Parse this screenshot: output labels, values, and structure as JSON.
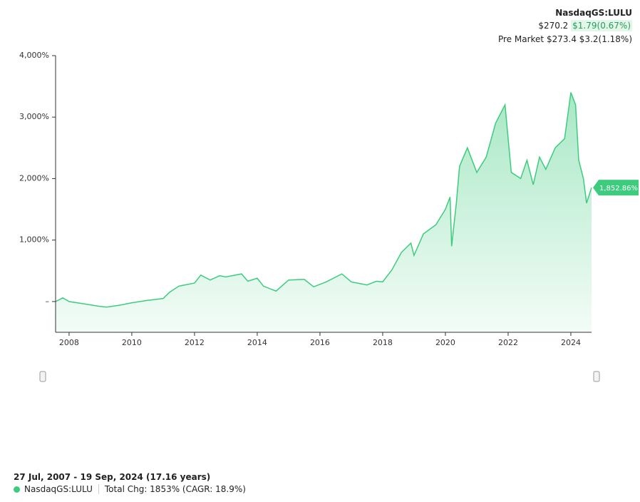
{
  "header": {
    "ticker": "NasdaqGS:LULU",
    "price": "$270.2",
    "change": "$1.79(0.67%)",
    "pre_market_label": "Pre Market",
    "pre_market_price": "$273.4",
    "pre_market_change": "$3.2(1.18%)"
  },
  "chart_data": {
    "type": "area",
    "series": [
      {
        "name": "NasdaqGS:LULU",
        "color": "#3dcc7e",
        "x": [
          2007.57,
          2007.8,
          2008.0,
          2008.5,
          2009.0,
          2009.2,
          2009.6,
          2010.0,
          2010.5,
          2011.0,
          2011.2,
          2011.5,
          2011.8,
          2012.0,
          2012.2,
          2012.5,
          2012.8,
          2013.0,
          2013.5,
          2013.7,
          2014.0,
          2014.2,
          2014.6,
          2015.0,
          2015.5,
          2015.8,
          2016.2,
          2016.7,
          2017.0,
          2017.5,
          2017.8,
          2018.0,
          2018.3,
          2018.6,
          2018.9,
          2019.0,
          2019.3,
          2019.7,
          2020.0,
          2020.15,
          2020.2,
          2020.35,
          2020.45,
          2020.7,
          2021.0,
          2021.3,
          2021.6,
          2021.9,
          2022.1,
          2022.4,
          2022.6,
          2022.8,
          2023.0,
          2023.2,
          2023.5,
          2023.8,
          2024.0,
          2024.15,
          2024.25,
          2024.4,
          2024.5,
          2024.66
        ],
        "values": [
          0,
          60,
          0,
          -40,
          -80,
          -90,
          -60,
          -20,
          20,
          50,
          150,
          250,
          280,
          300,
          430,
          350,
          420,
          400,
          450,
          330,
          380,
          250,
          170,
          350,
          360,
          240,
          320,
          450,
          320,
          270,
          330,
          320,
          520,
          800,
          950,
          750,
          1100,
          1250,
          1500,
          1700,
          900,
          1600,
          2200,
          2500,
          2100,
          2350,
          2900,
          3200,
          2100,
          2000,
          2300,
          1900,
          2350,
          2150,
          2500,
          2650,
          3400,
          3200,
          2300,
          2000,
          1600,
          1852.86
        ]
      }
    ],
    "end_label": "1,852.86%",
    "xlim": [
      2007.57,
      2024.66
    ],
    "xticks": [
      2008,
      2010,
      2012,
      2014,
      2016,
      2018,
      2020,
      2022,
      2024
    ],
    "ylim": [
      -500,
      4000
    ],
    "yticks": [
      {
        "value": 0,
        "label": "–"
      },
      {
        "value": 1000,
        "label": "1,000%"
      },
      {
        "value": 2000,
        "label": "2,000%"
      },
      {
        "value": 3000,
        "label": "3,000%"
      },
      {
        "value": 4000,
        "label": "4,000%"
      }
    ]
  },
  "footer": {
    "range": "27 Jul, 2007 - 19 Sep, 2024 (17.16 years)",
    "legend": "NasdaqGS:LULU",
    "total": "Total Chg: 1853% (CAGR: 18.9%)"
  }
}
